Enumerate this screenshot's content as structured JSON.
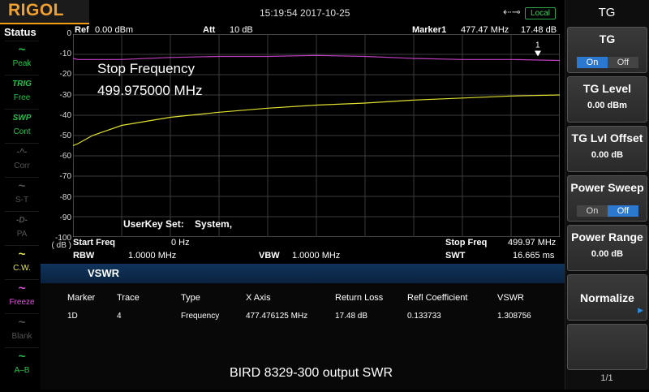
{
  "header": {
    "logo": "RIGOL",
    "datetime": "15:19:54 2017-10-25",
    "usb_icon": "usb-icon",
    "local_badge": "Local"
  },
  "status": {
    "title": "Status",
    "items": [
      {
        "icon": "~",
        "label": "Peak",
        "color": "#27c24c"
      },
      {
        "icon": "TRIG",
        "label": "Free",
        "color": "#27c24c"
      },
      {
        "icon": "SWP",
        "label": "Cont",
        "color": "#27c24c"
      },
      {
        "icon": "-^-",
        "label": "Corr",
        "color": "#555555"
      },
      {
        "icon": "~",
        "label": "S-T",
        "color": "#555555"
      },
      {
        "icon": "-D-",
        "label": "PA",
        "color": "#555555"
      },
      {
        "icon": "~",
        "label": "C.W.",
        "color": "#e8e84a"
      },
      {
        "icon": "~",
        "label": "Freeze",
        "color": "#e050e0"
      },
      {
        "icon": "~",
        "label": "Blank",
        "color": "#555555"
      },
      {
        "icon": "~",
        "label": "A–B",
        "color": "#27c24c"
      }
    ]
  },
  "plot_header": {
    "ref_label": "Ref",
    "ref_value": "0.00 dBm",
    "att_label": "Att",
    "att_value": "10 dB",
    "marker_label": "Marker1",
    "marker_freq": "477.47 MHz",
    "marker_level": "17.48 dB",
    "marker_num": "1"
  },
  "overlay": {
    "title": "Stop Frequency",
    "value": "499.975000 MHz",
    "userkey": "UserKey Set:    System,"
  },
  "y_unit": "( dB )",
  "plot_footer": {
    "start_label": "Start Freq",
    "start_value": "0 Hz",
    "stop_label": "Stop Freq",
    "stop_value": "499.97 MHz",
    "rbw_label": "RBW",
    "rbw_value": "1.0000 MHz",
    "vbw_label": "VBW",
    "vbw_value": "1.0000 MHz",
    "swt_label": "SWT",
    "swt_value": "16.665 ms"
  },
  "vswr": {
    "title": "VSWR",
    "columns": [
      "Marker",
      "Trace",
      "Type",
      "X Axis",
      "Return Loss",
      "Refl Coefficient",
      "VSWR"
    ],
    "row": [
      "1D",
      "4",
      "Frequency",
      "477.476125 MHz",
      "17.48 dB",
      "0.133733",
      "1.308756"
    ]
  },
  "note": "BIRD 8329-300 output SWR",
  "menu": {
    "title": "TG",
    "keys": [
      {
        "title": "TG",
        "toggle": [
          "On",
          "Off"
        ],
        "active": "On"
      },
      {
        "title": "TG Level",
        "value": "0.00 dBm"
      },
      {
        "title": "TG Lvl Offset",
        "value": "0.00 dB"
      },
      {
        "title": "Power Sweep",
        "toggle": [
          "On",
          "Off"
        ],
        "active": "Off"
      },
      {
        "title": "Power Range",
        "value": "0.00 dB"
      },
      {
        "title": "Normalize",
        "arrow": "▶"
      },
      {
        "title": ""
      }
    ],
    "pager": "1/1"
  },
  "chart_data": {
    "type": "line",
    "x_range": [
      0,
      499.97
    ],
    "x_unit": "MHz",
    "ylim": [
      -100,
      0
    ],
    "y_ticks": [
      "0",
      "-10",
      "-20",
      "-30",
      "-40",
      "-50",
      "-60",
      "-70",
      "-80",
      "-90",
      "-100"
    ],
    "grid": true,
    "series": [
      {
        "color": "#c040c0",
        "x": [
          0,
          5,
          20,
          50,
          100,
          150,
          200,
          250,
          300,
          350,
          400,
          450,
          499.97
        ],
        "y": [
          -12,
          -12.5,
          -12.5,
          -12.5,
          -11.5,
          -11,
          -11,
          -10.5,
          -11,
          -12,
          -12.5,
          -12.5,
          -13
        ]
      },
      {
        "color": "#e0e030",
        "x": [
          0,
          5,
          20,
          50,
          100,
          150,
          200,
          250,
          300,
          350,
          400,
          450,
          499.97
        ],
        "y": [
          -55,
          -54,
          -50,
          -45,
          -41,
          -38.5,
          -36.5,
          -35,
          -34,
          -32.5,
          -31.5,
          -30.5,
          -30
        ]
      }
    ],
    "marker": {
      "label": "1",
      "x": 477.47,
      "y": -13
    }
  }
}
